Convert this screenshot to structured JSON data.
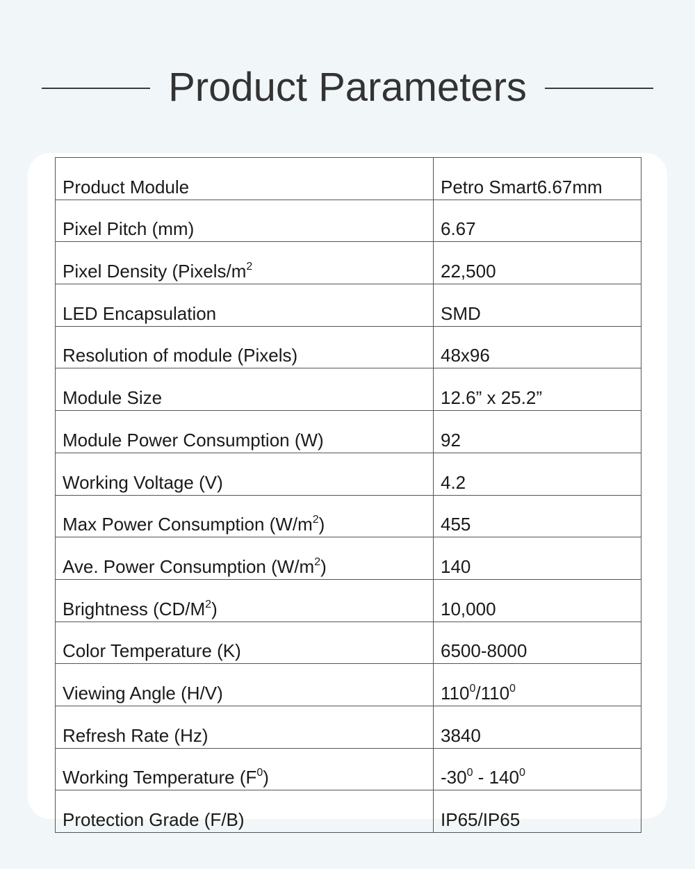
{
  "header": {
    "title": "Product Parameters"
  },
  "table": {
    "rows": [
      {
        "label": [
          {
            "t": "Product Module"
          }
        ],
        "value": [
          {
            "t": "Petro Smart6.67mm"
          }
        ]
      },
      {
        "label": [
          {
            "t": "Pixel Pitch (mm)"
          }
        ],
        "value": [
          {
            "t": "6.67"
          }
        ]
      },
      {
        "label": [
          {
            "t": "Pixel Density (Pixels/m"
          },
          {
            "sup": "2"
          }
        ],
        "value": [
          {
            "t": "22,500"
          }
        ]
      },
      {
        "label": [
          {
            "t": "LED Encapsulation"
          }
        ],
        "value": [
          {
            "t": "SMD"
          }
        ]
      },
      {
        "label": [
          {
            "t": "Resolution of module (Pixels)"
          }
        ],
        "value": [
          {
            "t": "48x96"
          }
        ]
      },
      {
        "label": [
          {
            "t": "Module Size"
          }
        ],
        "value": [
          {
            "t": "12.6” x 25.2”"
          }
        ]
      },
      {
        "label": [
          {
            "t": "Module Power Consumption (W)"
          }
        ],
        "value": [
          {
            "t": "92"
          }
        ]
      },
      {
        "label": [
          {
            "t": "Working Voltage (V)"
          }
        ],
        "value": [
          {
            "t": "4.2"
          }
        ]
      },
      {
        "label": [
          {
            "t": "Max Power Consumption (W/m"
          },
          {
            "sup": "2"
          },
          {
            "t": ")"
          }
        ],
        "value": [
          {
            "t": "455"
          }
        ]
      },
      {
        "label": [
          {
            "t": "Ave. Power Consumption (W/m"
          },
          {
            "sup": "2"
          },
          {
            "t": ")"
          }
        ],
        "value": [
          {
            "t": "140"
          }
        ]
      },
      {
        "label": [
          {
            "t": "Brightness (CD/M"
          },
          {
            "sup": "2"
          },
          {
            "t": ")"
          }
        ],
        "value": [
          {
            "t": "10,000"
          }
        ]
      },
      {
        "label": [
          {
            "t": "Color Temperature (K)"
          }
        ],
        "value": [
          {
            "t": "6500-8000"
          }
        ]
      },
      {
        "label": [
          {
            "t": "Viewing Angle (H/V)"
          }
        ],
        "value": [
          {
            "t": "110"
          },
          {
            "sup": "0"
          },
          {
            "t": "/110"
          },
          {
            "sup": "0"
          }
        ]
      },
      {
        "label": [
          {
            "t": "Refresh Rate (Hz)"
          }
        ],
        "value": [
          {
            "t": "3840"
          }
        ]
      },
      {
        "label": [
          {
            "t": "Working Temperature (F"
          },
          {
            "sup": "0"
          },
          {
            "t": ")"
          }
        ],
        "value": [
          {
            "t": "-30"
          },
          {
            "sup": "0"
          },
          {
            "t": " - 140"
          },
          {
            "sup": "0"
          }
        ]
      },
      {
        "label": [
          {
            "t": "Protection Grade (F/B)"
          }
        ],
        "value": [
          {
            "t": "IP65/IP65"
          }
        ]
      }
    ]
  }
}
